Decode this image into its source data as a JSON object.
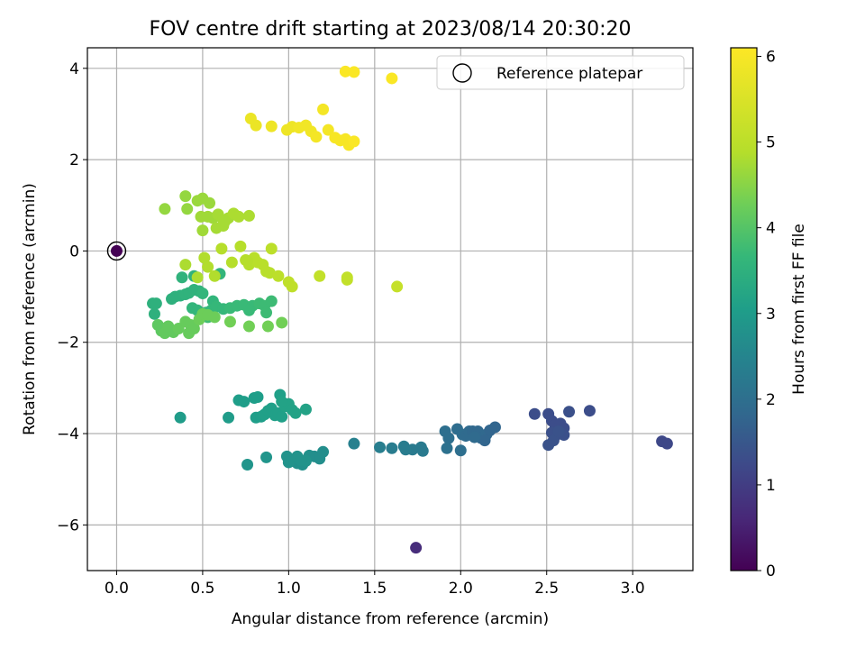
{
  "chart_data": {
    "type": "scatter",
    "title": "FOV centre drift starting at 2023/08/14 20:30:20",
    "xlabel": "Angular distance from reference (arcmin)",
    "ylabel": "Rotation from reference (arcmin)",
    "xlim": [
      -0.17,
      3.35
    ],
    "ylim": [
      -7.0,
      4.45
    ],
    "xticks": [
      0.0,
      0.5,
      1.0,
      1.5,
      2.0,
      2.5,
      3.0
    ],
    "xtick_labels": [
      "0.0",
      "0.5",
      "1.0",
      "1.5",
      "2.0",
      "2.5",
      "3.0"
    ],
    "yticks": [
      -6,
      -4,
      -2,
      0,
      2,
      4
    ],
    "ytick_labels": [
      "−6",
      "−4",
      "−2",
      "0",
      "2",
      "4"
    ],
    "grid": true,
    "legend": {
      "placement": "top-right",
      "entries": [
        "Reference platepar"
      ]
    },
    "reference_point": {
      "x": 0.0,
      "y": 0.0,
      "hours": 0.0,
      "label": "Reference platepar"
    },
    "colorbar": {
      "label": "Hours from first FF file",
      "colormap": "viridis",
      "range": [
        0,
        6.1
      ],
      "ticks": [
        0,
        1,
        2,
        3,
        4,
        5,
        6
      ],
      "tick_labels": [
        "0",
        "1",
        "2",
        "3",
        "4",
        "5",
        "6"
      ]
    },
    "points": [
      {
        "x": 1.74,
        "y": -6.5,
        "h": 0.7
      },
      {
        "x": 3.17,
        "y": -4.17,
        "h": 1.2
      },
      {
        "x": 3.2,
        "y": -4.22,
        "h": 1.2
      },
      {
        "x": 2.43,
        "y": -3.57,
        "h": 1.3
      },
      {
        "x": 2.51,
        "y": -3.57,
        "h": 1.3
      },
      {
        "x": 2.53,
        "y": -3.72,
        "h": 1.3
      },
      {
        "x": 2.55,
        "y": -3.82,
        "h": 1.3
      },
      {
        "x": 2.58,
        "y": -3.78,
        "h": 1.3
      },
      {
        "x": 2.6,
        "y": -3.88,
        "h": 1.3
      },
      {
        "x": 2.63,
        "y": -3.52,
        "h": 1.35
      },
      {
        "x": 2.53,
        "y": -3.98,
        "h": 1.35
      },
      {
        "x": 2.56,
        "y": -4.02,
        "h": 1.35
      },
      {
        "x": 2.6,
        "y": -4.03,
        "h": 1.35
      },
      {
        "x": 2.51,
        "y": -4.25,
        "h": 1.4
      },
      {
        "x": 2.54,
        "y": -4.15,
        "h": 1.4
      },
      {
        "x": 2.57,
        "y": -3.95,
        "h": 1.4
      },
      {
        "x": 2.75,
        "y": -3.5,
        "h": 1.3
      },
      {
        "x": 1.91,
        "y": -3.95,
        "h": 2.0
      },
      {
        "x": 1.93,
        "y": -4.1,
        "h": 2.0
      },
      {
        "x": 1.92,
        "y": -4.32,
        "h": 2.05
      },
      {
        "x": 1.98,
        "y": -3.9,
        "h": 1.95
      },
      {
        "x": 2.01,
        "y": -4.02,
        "h": 1.95
      },
      {
        "x": 2.03,
        "y": -4.05,
        "h": 1.9
      },
      {
        "x": 2.05,
        "y": -3.95,
        "h": 1.9
      },
      {
        "x": 2.07,
        "y": -3.95,
        "h": 1.85
      },
      {
        "x": 2.1,
        "y": -3.95,
        "h": 1.85
      },
      {
        "x": 2.12,
        "y": -4.1,
        "h": 1.85
      },
      {
        "x": 2.15,
        "y": -4.02,
        "h": 1.85
      },
      {
        "x": 2.17,
        "y": -3.93,
        "h": 1.8
      },
      {
        "x": 2.2,
        "y": -3.86,
        "h": 1.8
      },
      {
        "x": 2.14,
        "y": -4.15,
        "h": 1.8
      },
      {
        "x": 2.0,
        "y": -4.37,
        "h": 2.0
      },
      {
        "x": 2.08,
        "y": -4.08,
        "h": 1.9
      },
      {
        "x": 1.38,
        "y": -4.22,
        "h": 2.4
      },
      {
        "x": 1.53,
        "y": -4.3,
        "h": 2.35
      },
      {
        "x": 1.6,
        "y": -4.32,
        "h": 2.3
      },
      {
        "x": 1.67,
        "y": -4.28,
        "h": 2.3
      },
      {
        "x": 1.72,
        "y": -4.35,
        "h": 2.25
      },
      {
        "x": 1.77,
        "y": -4.3,
        "h": 2.25
      },
      {
        "x": 1.78,
        "y": -4.38,
        "h": 2.25
      },
      {
        "x": 1.68,
        "y": -4.35,
        "h": 2.3
      },
      {
        "x": 0.99,
        "y": -4.5,
        "h": 2.8
      },
      {
        "x": 1.02,
        "y": -4.6,
        "h": 2.8
      },
      {
        "x": 1.05,
        "y": -4.65,
        "h": 2.75
      },
      {
        "x": 1.08,
        "y": -4.68,
        "h": 2.75
      },
      {
        "x": 1.12,
        "y": -4.48,
        "h": 2.75
      },
      {
        "x": 1.15,
        "y": -4.5,
        "h": 2.7
      },
      {
        "x": 1.18,
        "y": -4.55,
        "h": 2.7
      },
      {
        "x": 1.2,
        "y": -4.4,
        "h": 2.7
      },
      {
        "x": 1.1,
        "y": -4.6,
        "h": 2.8
      },
      {
        "x": 1.0,
        "y": -4.63,
        "h": 2.8
      },
      {
        "x": 0.87,
        "y": -4.52,
        "h": 2.85
      },
      {
        "x": 0.76,
        "y": -4.68,
        "h": 2.85
      },
      {
        "x": 1.05,
        "y": -4.5,
        "h": 2.8
      },
      {
        "x": 1.07,
        "y": -4.58,
        "h": 2.8
      },
      {
        "x": 0.37,
        "y": -3.65,
        "h": 3.0
      },
      {
        "x": 0.65,
        "y": -3.65,
        "h": 3.0
      },
      {
        "x": 0.71,
        "y": -3.27,
        "h": 3.05
      },
      {
        "x": 0.74,
        "y": -3.3,
        "h": 3.05
      },
      {
        "x": 0.8,
        "y": -3.22,
        "h": 3.05
      },
      {
        "x": 0.82,
        "y": -3.2,
        "h": 3.05
      },
      {
        "x": 0.81,
        "y": -3.65,
        "h": 3.05
      },
      {
        "x": 0.84,
        "y": -3.63,
        "h": 3.05
      },
      {
        "x": 0.86,
        "y": -3.58,
        "h": 3.1
      },
      {
        "x": 0.88,
        "y": -3.5,
        "h": 3.1
      },
      {
        "x": 0.9,
        "y": -3.45,
        "h": 3.1
      },
      {
        "x": 0.92,
        "y": -3.6,
        "h": 3.1
      },
      {
        "x": 0.94,
        "y": -3.55,
        "h": 3.1
      },
      {
        "x": 0.96,
        "y": -3.63,
        "h": 3.1
      },
      {
        "x": 0.95,
        "y": -3.15,
        "h": 3.1
      },
      {
        "x": 0.98,
        "y": -3.4,
        "h": 3.15
      },
      {
        "x": 1.0,
        "y": -3.35,
        "h": 3.15
      },
      {
        "x": 1.02,
        "y": -3.48,
        "h": 3.15
      },
      {
        "x": 1.04,
        "y": -3.55,
        "h": 3.15
      },
      {
        "x": 1.1,
        "y": -3.47,
        "h": 3.15
      },
      {
        "x": 0.96,
        "y": -3.3,
        "h": 3.15
      },
      {
        "x": 0.21,
        "y": -1.15,
        "h": 3.5
      },
      {
        "x": 0.23,
        "y": -1.15,
        "h": 3.5
      },
      {
        "x": 0.22,
        "y": -1.38,
        "h": 3.5
      },
      {
        "x": 0.32,
        "y": -1.05,
        "h": 3.5
      },
      {
        "x": 0.34,
        "y": -1.0,
        "h": 3.5
      },
      {
        "x": 0.37,
        "y": -0.98,
        "h": 3.5
      },
      {
        "x": 0.4,
        "y": -0.95,
        "h": 3.55
      },
      {
        "x": 0.42,
        "y": -0.92,
        "h": 3.55
      },
      {
        "x": 0.38,
        "y": -0.58,
        "h": 3.55
      },
      {
        "x": 0.45,
        "y": -0.55,
        "h": 3.55
      },
      {
        "x": 0.45,
        "y": -0.85,
        "h": 3.55
      },
      {
        "x": 0.48,
        "y": -0.88,
        "h": 3.55
      },
      {
        "x": 0.5,
        "y": -0.93,
        "h": 3.6
      },
      {
        "x": 0.56,
        "y": -1.1,
        "h": 3.6
      },
      {
        "x": 0.6,
        "y": -0.5,
        "h": 3.6
      },
      {
        "x": 0.44,
        "y": -1.25,
        "h": 3.6
      },
      {
        "x": 0.47,
        "y": -1.3,
        "h": 3.6
      },
      {
        "x": 0.52,
        "y": -1.35,
        "h": 3.65
      },
      {
        "x": 0.55,
        "y": -1.3,
        "h": 3.65
      },
      {
        "x": 0.58,
        "y": -1.22,
        "h": 3.65
      },
      {
        "x": 0.62,
        "y": -1.27,
        "h": 3.65
      },
      {
        "x": 0.66,
        "y": -1.25,
        "h": 3.7
      },
      {
        "x": 0.7,
        "y": -1.2,
        "h": 3.7
      },
      {
        "x": 0.74,
        "y": -1.18,
        "h": 3.7
      },
      {
        "x": 0.79,
        "y": -1.2,
        "h": 3.7
      },
      {
        "x": 0.83,
        "y": -1.15,
        "h": 3.75
      },
      {
        "x": 0.86,
        "y": -1.2,
        "h": 3.75
      },
      {
        "x": 0.9,
        "y": -1.1,
        "h": 3.75
      },
      {
        "x": 0.77,
        "y": -1.3,
        "h": 3.7
      },
      {
        "x": 0.87,
        "y": -1.35,
        "h": 3.75
      },
      {
        "x": 0.53,
        "y": -1.45,
        "h": 3.8
      },
      {
        "x": 0.24,
        "y": -1.62,
        "h": 4.1
      },
      {
        "x": 0.26,
        "y": -1.75,
        "h": 4.1
      },
      {
        "x": 0.28,
        "y": -1.8,
        "h": 4.15
      },
      {
        "x": 0.3,
        "y": -1.65,
        "h": 4.15
      },
      {
        "x": 0.33,
        "y": -1.78,
        "h": 4.15
      },
      {
        "x": 0.36,
        "y": -1.7,
        "h": 4.2
      },
      {
        "x": 0.4,
        "y": -1.55,
        "h": 4.2
      },
      {
        "x": 0.43,
        "y": -1.62,
        "h": 4.2
      },
      {
        "x": 0.42,
        "y": -1.8,
        "h": 4.2
      },
      {
        "x": 0.45,
        "y": -1.7,
        "h": 4.2
      },
      {
        "x": 0.48,
        "y": -1.5,
        "h": 4.25
      },
      {
        "x": 0.5,
        "y": -1.38,
        "h": 4.25
      },
      {
        "x": 0.53,
        "y": -1.4,
        "h": 4.25
      },
      {
        "x": 0.57,
        "y": -1.45,
        "h": 4.25
      },
      {
        "x": 0.66,
        "y": -1.55,
        "h": 4.3
      },
      {
        "x": 0.77,
        "y": -1.65,
        "h": 4.3
      },
      {
        "x": 0.88,
        "y": -1.65,
        "h": 4.3
      },
      {
        "x": 0.96,
        "y": -1.57,
        "h": 4.3
      },
      {
        "x": 0.4,
        "y": -0.3,
        "h": 4.8
      },
      {
        "x": 0.47,
        "y": -0.58,
        "h": 4.8
      },
      {
        "x": 0.51,
        "y": -0.15,
        "h": 4.85
      },
      {
        "x": 0.53,
        "y": -0.35,
        "h": 4.85
      },
      {
        "x": 0.57,
        "y": -0.55,
        "h": 4.85
      },
      {
        "x": 0.61,
        "y": 0.05,
        "h": 4.9
      },
      {
        "x": 0.67,
        "y": -0.25,
        "h": 4.9
      },
      {
        "x": 0.72,
        "y": 0.1,
        "h": 4.9
      },
      {
        "x": 0.75,
        "y": -0.2,
        "h": 4.9
      },
      {
        "x": 0.77,
        "y": -0.3,
        "h": 4.9
      },
      {
        "x": 0.8,
        "y": -0.15,
        "h": 4.95
      },
      {
        "x": 0.82,
        "y": -0.25,
        "h": 4.95
      },
      {
        "x": 0.85,
        "y": -0.3,
        "h": 4.95
      },
      {
        "x": 0.87,
        "y": -0.45,
        "h": 4.95
      },
      {
        "x": 0.89,
        "y": -0.48,
        "h": 4.95
      },
      {
        "x": 0.9,
        "y": 0.05,
        "h": 5.0
      },
      {
        "x": 0.94,
        "y": -0.55,
        "h": 5.0
      },
      {
        "x": 1.0,
        "y": -0.68,
        "h": 5.05
      },
      {
        "x": 1.02,
        "y": -0.78,
        "h": 5.05
      },
      {
        "x": 1.18,
        "y": -0.55,
        "h": 5.1
      },
      {
        "x": 1.34,
        "y": -0.58,
        "h": 5.1
      },
      {
        "x": 1.34,
        "y": -0.63,
        "h": 5.1
      },
      {
        "x": 1.63,
        "y": -0.78,
        "h": 5.15
      },
      {
        "x": 0.76,
        "y": -0.22,
        "h": 4.9
      },
      {
        "x": 0.28,
        "y": 0.92,
        "h": 4.6
      },
      {
        "x": 0.4,
        "y": 1.2,
        "h": 4.6
      },
      {
        "x": 0.41,
        "y": 0.92,
        "h": 4.6
      },
      {
        "x": 0.47,
        "y": 1.1,
        "h": 4.65
      },
      {
        "x": 0.5,
        "y": 1.15,
        "h": 4.65
      },
      {
        "x": 0.54,
        "y": 1.05,
        "h": 4.65
      },
      {
        "x": 0.49,
        "y": 0.75,
        "h": 4.7
      },
      {
        "x": 0.53,
        "y": 0.75,
        "h": 4.7
      },
      {
        "x": 0.56,
        "y": 0.72,
        "h": 4.7
      },
      {
        "x": 0.59,
        "y": 0.8,
        "h": 4.75
      },
      {
        "x": 0.62,
        "y": 0.68,
        "h": 4.75
      },
      {
        "x": 0.65,
        "y": 0.72,
        "h": 4.75
      },
      {
        "x": 0.68,
        "y": 0.82,
        "h": 4.8
      },
      {
        "x": 0.71,
        "y": 0.75,
        "h": 4.8
      },
      {
        "x": 0.77,
        "y": 0.77,
        "h": 4.8
      },
      {
        "x": 0.5,
        "y": 0.45,
        "h": 4.7
      },
      {
        "x": 0.58,
        "y": 0.5,
        "h": 4.75
      },
      {
        "x": 0.62,
        "y": 0.55,
        "h": 4.75
      },
      {
        "x": 0.63,
        "y": 0.65,
        "h": 4.75
      },
      {
        "x": 0.78,
        "y": 2.9,
        "h": 5.8
      },
      {
        "x": 0.81,
        "y": 2.75,
        "h": 5.8
      },
      {
        "x": 0.9,
        "y": 2.73,
        "h": 5.85
      },
      {
        "x": 0.99,
        "y": 2.65,
        "h": 5.85
      },
      {
        "x": 1.02,
        "y": 2.72,
        "h": 5.85
      },
      {
        "x": 1.06,
        "y": 2.7,
        "h": 5.9
      },
      {
        "x": 1.1,
        "y": 2.75,
        "h": 5.9
      },
      {
        "x": 1.13,
        "y": 2.62,
        "h": 5.9
      },
      {
        "x": 1.16,
        "y": 2.5,
        "h": 5.95
      },
      {
        "x": 1.2,
        "y": 3.1,
        "h": 5.95
      },
      {
        "x": 1.23,
        "y": 2.65,
        "h": 5.95
      },
      {
        "x": 1.27,
        "y": 2.48,
        "h": 6.0
      },
      {
        "x": 1.3,
        "y": 2.42,
        "h": 6.0
      },
      {
        "x": 1.33,
        "y": 2.45,
        "h": 6.0
      },
      {
        "x": 1.35,
        "y": 2.32,
        "h": 6.0
      },
      {
        "x": 1.38,
        "y": 2.4,
        "h": 6.05
      },
      {
        "x": 1.33,
        "y": 3.93,
        "h": 6.05
      },
      {
        "x": 1.38,
        "y": 3.92,
        "h": 6.05
      },
      {
        "x": 1.6,
        "y": 3.78,
        "h": 6.05
      }
    ]
  }
}
